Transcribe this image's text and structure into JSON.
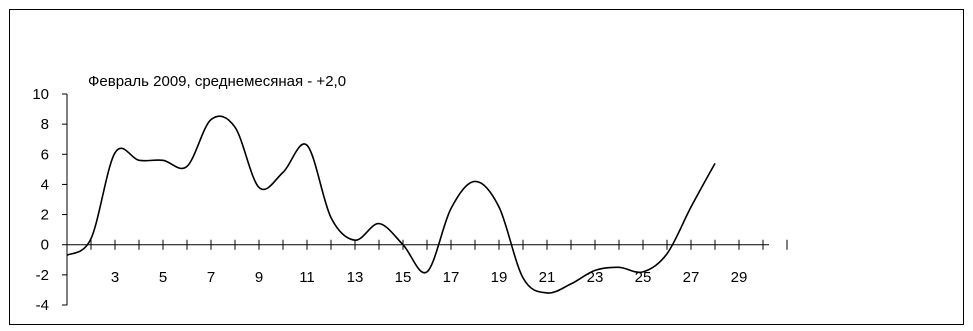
{
  "chart_data": {
    "type": "line",
    "title": "Февраль  2009, среднемесяная - +2,0",
    "xlabel": "",
    "ylabel": "",
    "xlim": [
      1,
      31
    ],
    "ylim": [
      -4,
      10
    ],
    "y_ticks": [
      10,
      8,
      6,
      4,
      2,
      0,
      -2,
      -4
    ],
    "x_tick_labels": [
      3,
      5,
      7,
      9,
      11,
      13,
      15,
      17,
      19,
      21,
      23,
      25,
      27,
      29
    ],
    "grid": false,
    "legend": "none",
    "series": [
      {
        "x": [
          1,
          2,
          3,
          4,
          5,
          6,
          7,
          8,
          9,
          10,
          11,
          12,
          13,
          14,
          15,
          16,
          17,
          18,
          19,
          20,
          21,
          22,
          23,
          24,
          25,
          26,
          27,
          28
        ],
        "y": [
          -0.7,
          0.4,
          6.1,
          5.6,
          5.6,
          5.2,
          8.3,
          7.8,
          3.8,
          4.8,
          6.6,
          1.8,
          0.3,
          1.4,
          0.0,
          -1.8,
          2.4,
          4.2,
          2.5,
          -2.2,
          -3.2,
          -2.6,
          -1.7,
          -1.5,
          -1.8,
          -0.6,
          2.5,
          5.4
        ],
        "color": "#000000"
      }
    ]
  }
}
